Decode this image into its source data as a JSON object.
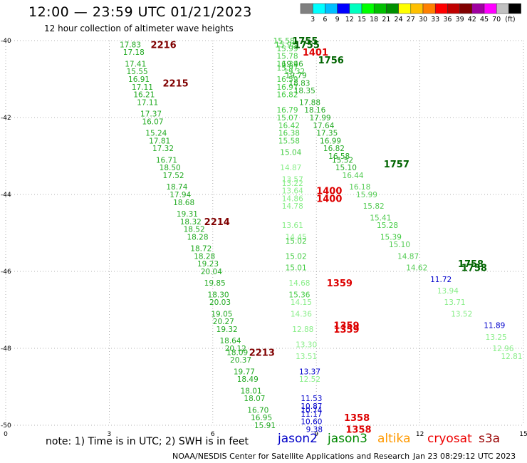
{
  "header": {
    "title": "12:00 — 23:59 UTC 01/21/2023",
    "subtitle": "12 hour collection of altimeter wave heights"
  },
  "colorbar": {
    "unit": "(ft)",
    "colors": [
      "#808080",
      "#00ffff",
      "#00bfff",
      "#0000ff",
      "#00ffc0",
      "#00ff00",
      "#00c000",
      "#009000",
      "#ffff00",
      "#ffc000",
      "#ff8000",
      "#ff0000",
      "#c00000",
      "#800000",
      "#a000a0",
      "#ff00ff",
      "#c0c0c0",
      "#000000"
    ],
    "labels": [
      "3",
      "6",
      "9",
      "12",
      "15",
      "18",
      "21",
      "24",
      "27",
      "30",
      "33",
      "36",
      "39",
      "42",
      "45",
      "70"
    ]
  },
  "note": "note:  1) Time is in UTC;  2) SWH is in feet",
  "satellites": [
    {
      "name": "jason2",
      "color": "#0000c8"
    },
    {
      "name": "jason3",
      "color": "#008800"
    },
    {
      "name": "altika",
      "color": "#ff9900"
    },
    {
      "name": "cryosat",
      "color": "#ee0000"
    },
    {
      "name": "s3a",
      "color": "#990000"
    }
  ],
  "footer": {
    "left": "NOAA/NESDIS Center for Satellite Applications and Research",
    "right": "Jan 23 08:29:12 UTC 2023"
  },
  "chart_data": {
    "type": "scatter",
    "xlim": [
      0,
      15
    ],
    "ylim": [
      -50,
      -40
    ],
    "x_ticks": [
      0,
      3,
      6,
      9,
      12,
      15
    ],
    "y_ticks": [
      -40,
      -42,
      -44,
      -46,
      -48,
      -50
    ],
    "y_tick_labels": [
      "-40",
      "-42",
      "-44",
      "-46",
      "-48",
      "-50"
    ],
    "grid": "dotted",
    "time_labels": [
      {
        "text": "2216",
        "x": 4.2,
        "y": -40.1,
        "color": "#800000"
      },
      {
        "text": "2215",
        "x": 4.55,
        "y": -41.1,
        "color": "#800000"
      },
      {
        "text": "2214",
        "x": 5.75,
        "y": -44.7,
        "color": "#800000"
      },
      {
        "text": "2213",
        "x": 7.05,
        "y": -48.1,
        "color": "#800000"
      },
      {
        "text": "1755",
        "x": 8.3,
        "y": -40.0,
        "color": "#006400"
      },
      {
        "text": "1755",
        "x": 8.35,
        "y": -40.1,
        "color": "#006400"
      },
      {
        "text": "1401",
        "x": 8.6,
        "y": -40.3,
        "color": "#dd0000"
      },
      {
        "text": "1756",
        "x": 9.05,
        "y": -40.5,
        "color": "#006400"
      },
      {
        "text": "1757",
        "x": 10.95,
        "y": -43.2,
        "color": "#006400"
      },
      {
        "text": "1400",
        "x": 9.0,
        "y": -43.9,
        "color": "#dd0000"
      },
      {
        "text": "1400",
        "x": 9.0,
        "y": -44.1,
        "color": "#dd0000"
      },
      {
        "text": "1758",
        "x": 13.1,
        "y": -45.8,
        "color": "#006400"
      },
      {
        "text": "1758",
        "x": 13.2,
        "y": -45.9,
        "color": "#006400"
      },
      {
        "text": "1359",
        "x": 9.3,
        "y": -46.3,
        "color": "#dd0000"
      },
      {
        "text": "1359",
        "x": 9.5,
        "y": -47.4,
        "color": "#dd0000"
      },
      {
        "text": "1359",
        "x": 9.5,
        "y": -47.5,
        "color": "#dd0000"
      },
      {
        "text": "1358",
        "x": 9.8,
        "y": -49.8,
        "color": "#dd0000"
      },
      {
        "text": "1358",
        "x": 9.85,
        "y": -50.1,
        "color": "#dd0000"
      }
    ],
    "points": [
      {
        "v": "17.83",
        "x": 3.3,
        "y": -40.1,
        "c": "#22aa22"
      },
      {
        "v": "17.18",
        "x": 3.4,
        "y": -40.3,
        "c": "#22aa22"
      },
      {
        "v": "17.41",
        "x": 3.45,
        "y": -40.6,
        "c": "#22aa22"
      },
      {
        "v": "15.55",
        "x": 3.5,
        "y": -40.8,
        "c": "#22aa22"
      },
      {
        "v": "16.91",
        "x": 3.55,
        "y": -41.0,
        "c": "#22aa22"
      },
      {
        "v": "17.11",
        "x": 3.65,
        "y": -41.2,
        "c": "#22aa22"
      },
      {
        "v": "16.21",
        "x": 3.7,
        "y": -41.4,
        "c": "#22aa22"
      },
      {
        "v": "17.11",
        "x": 3.8,
        "y": -41.6,
        "c": "#22aa22"
      },
      {
        "v": "17.37",
        "x": 3.9,
        "y": -41.9,
        "c": "#22aa22"
      },
      {
        "v": "16.07",
        "x": 3.95,
        "y": -42.1,
        "c": "#22aa22"
      },
      {
        "v": "15.24",
        "x": 4.05,
        "y": -42.4,
        "c": "#22aa22"
      },
      {
        "v": "17.81",
        "x": 4.15,
        "y": -42.6,
        "c": "#22aa22"
      },
      {
        "v": "17.32",
        "x": 4.25,
        "y": -42.8,
        "c": "#22aa22"
      },
      {
        "v": "16.71",
        "x": 4.35,
        "y": -43.1,
        "c": "#22aa22"
      },
      {
        "v": "18.50",
        "x": 4.45,
        "y": -43.3,
        "c": "#22aa22"
      },
      {
        "v": "17.52",
        "x": 4.55,
        "y": -43.5,
        "c": "#22aa22"
      },
      {
        "v": "18.74",
        "x": 4.65,
        "y": -43.8,
        "c": "#22aa22"
      },
      {
        "v": "17.94",
        "x": 4.75,
        "y": -44.0,
        "c": "#22aa22"
      },
      {
        "v": "18.68",
        "x": 4.85,
        "y": -44.2,
        "c": "#22aa22"
      },
      {
        "v": "19.31",
        "x": 4.95,
        "y": -44.5,
        "c": "#22aa22"
      },
      {
        "v": "18.32",
        "x": 5.05,
        "y": -44.7,
        "c": "#22aa22"
      },
      {
        "v": "18.52",
        "x": 5.15,
        "y": -44.9,
        "c": "#22aa22"
      },
      {
        "v": "18.28",
        "x": 5.25,
        "y": -45.1,
        "c": "#22aa22"
      },
      {
        "v": "18.72",
        "x": 5.35,
        "y": -45.4,
        "c": "#22aa22"
      },
      {
        "v": "18.28",
        "x": 5.45,
        "y": -45.6,
        "c": "#22aa22"
      },
      {
        "v": "19.23",
        "x": 5.55,
        "y": -45.8,
        "c": "#22aa22"
      },
      {
        "v": "20.04",
        "x": 5.65,
        "y": -46.0,
        "c": "#22aa22"
      },
      {
        "v": "19.85",
        "x": 5.75,
        "y": -46.3,
        "c": "#22aa22"
      },
      {
        "v": "18.30",
        "x": 5.85,
        "y": -46.6,
        "c": "#22aa22"
      },
      {
        "v": "20.03",
        "x": 5.9,
        "y": -46.8,
        "c": "#22aa22"
      },
      {
        "v": "19.05",
        "x": 5.95,
        "y": -47.1,
        "c": "#22aa22"
      },
      {
        "v": "20.27",
        "x": 6.0,
        "y": -47.3,
        "c": "#22aa22"
      },
      {
        "v": "19.32",
        "x": 6.1,
        "y": -47.5,
        "c": "#22aa22"
      },
      {
        "v": "18.64",
        "x": 6.2,
        "y": -47.8,
        "c": "#22aa22"
      },
      {
        "v": "20.12",
        "x": 6.35,
        "y": -48.0,
        "c": "#22aa22"
      },
      {
        "v": "18.09",
        "x": 6.4,
        "y": -48.1,
        "c": "#22aa22"
      },
      {
        "v": "20.37",
        "x": 6.5,
        "y": -48.3,
        "c": "#22aa22"
      },
      {
        "v": "19.77",
        "x": 6.6,
        "y": -48.6,
        "c": "#22aa22"
      },
      {
        "v": "18.49",
        "x": 6.7,
        "y": -48.8,
        "c": "#22aa22"
      },
      {
        "v": "18.01",
        "x": 6.8,
        "y": -49.1,
        "c": "#22aa22"
      },
      {
        "v": "18.07",
        "x": 6.9,
        "y": -49.3,
        "c": "#22aa22"
      },
      {
        "v": "16.70",
        "x": 7.0,
        "y": -49.6,
        "c": "#22aa22"
      },
      {
        "v": "16.95",
        "x": 7.1,
        "y": -49.8,
        "c": "#22aa22"
      },
      {
        "v": "15.91",
        "x": 7.2,
        "y": -50.0,
        "c": "#22aa22"
      },
      {
        "v": "15.58",
        "x": 7.75,
        "y": -40.0,
        "c": "#44cc44"
      },
      {
        "v": "15.98",
        "x": 7.8,
        "y": -40.1,
        "c": "#44cc44"
      },
      {
        "v": "15.99",
        "x": 7.85,
        "y": -40.2,
        "c": "#44cc44"
      },
      {
        "v": "15.78",
        "x": 7.85,
        "y": -40.4,
        "c": "#44cc44"
      },
      {
        "v": "16.39",
        "x": 7.85,
        "y": -40.6,
        "c": "#44cc44"
      },
      {
        "v": "15.97",
        "x": 7.85,
        "y": -40.7,
        "c": "#44cc44"
      },
      {
        "v": "19.32",
        "x": 8.05,
        "y": -40.8,
        "c": "#44cc44"
      },
      {
        "v": "16.59",
        "x": 7.85,
        "y": -41.0,
        "c": "#44cc44"
      },
      {
        "v": "16.97",
        "x": 7.85,
        "y": -41.2,
        "c": "#44cc44"
      },
      {
        "v": "16.82",
        "x": 7.85,
        "y": -41.4,
        "c": "#44cc44"
      },
      {
        "v": "16.79",
        "x": 7.85,
        "y": -41.8,
        "c": "#44cc44"
      },
      {
        "v": "15.07",
        "x": 7.85,
        "y": -42.0,
        "c": "#44cc44"
      },
      {
        "v": "16.42",
        "x": 7.9,
        "y": -42.2,
        "c": "#44cc44"
      },
      {
        "v": "16.38",
        "x": 7.9,
        "y": -42.4,
        "c": "#44cc44"
      },
      {
        "v": "15.58",
        "x": 7.9,
        "y": -42.6,
        "c": "#44cc44"
      },
      {
        "v": "15.04",
        "x": 7.95,
        "y": -42.9,
        "c": "#44cc44"
      },
      {
        "v": "14.87",
        "x": 7.95,
        "y": -43.3,
        "c": "#88ee88"
      },
      {
        "v": "13.57",
        "x": 8.0,
        "y": -43.6,
        "c": "#88ee88"
      },
      {
        "v": "13.22",
        "x": 8.0,
        "y": -43.7,
        "c": "#88ee88"
      },
      {
        "v": "13.64",
        "x": 8.0,
        "y": -43.9,
        "c": "#88ee88"
      },
      {
        "v": "14.86",
        "x": 8.0,
        "y": -44.1,
        "c": "#88ee88"
      },
      {
        "v": "14.78",
        "x": 8.0,
        "y": -44.3,
        "c": "#88ee88"
      },
      {
        "v": "13.61",
        "x": 8.0,
        "y": -44.8,
        "c": "#88ee88"
      },
      {
        "v": "14.45",
        "x": 8.1,
        "y": -45.1,
        "c": "#88ee88"
      },
      {
        "v": "15.02",
        "x": 8.1,
        "y": -45.2,
        "c": "#44cc44"
      },
      {
        "v": "15.02",
        "x": 8.1,
        "y": -45.6,
        "c": "#44cc44"
      },
      {
        "v": "15.01",
        "x": 8.1,
        "y": -45.9,
        "c": "#44cc44"
      },
      {
        "v": "14.68",
        "x": 8.2,
        "y": -46.3,
        "c": "#88ee88"
      },
      {
        "v": "15.36",
        "x": 8.2,
        "y": -46.6,
        "c": "#44cc44"
      },
      {
        "v": "14.15",
        "x": 8.25,
        "y": -46.8,
        "c": "#88ee88"
      },
      {
        "v": "14.36",
        "x": 8.25,
        "y": -47.1,
        "c": "#88ee88"
      },
      {
        "v": "12.88",
        "x": 8.3,
        "y": -47.5,
        "c": "#88ee88"
      },
      {
        "v": "13.30",
        "x": 8.4,
        "y": -47.9,
        "c": "#88ee88"
      },
      {
        "v": "13.51",
        "x": 8.4,
        "y": -48.2,
        "c": "#88ee88"
      },
      {
        "v": "13.37",
        "x": 8.5,
        "y": -48.6,
        "c": "#0000cc"
      },
      {
        "v": "12.52",
        "x": 8.5,
        "y": -48.8,
        "c": "#88ee88"
      },
      {
        "v": "11.53",
        "x": 8.55,
        "y": -49.3,
        "c": "#0000cc"
      },
      {
        "v": "10.87",
        "x": 8.55,
        "y": -49.5,
        "c": "#0000cc"
      },
      {
        "v": "10.74",
        "x": 8.55,
        "y": -49.6,
        "c": "#0000cc"
      },
      {
        "v": "11.17",
        "x": 8.55,
        "y": -49.7,
        "c": "#0000cc"
      },
      {
        "v": "10.60",
        "x": 8.55,
        "y": -49.9,
        "c": "#0000cc"
      },
      {
        "v": "9.38",
        "x": 8.7,
        "y": -50.1,
        "c": "#0000cc"
      },
      {
        "v": "19.46",
        "x": 8.0,
        "y": -40.6,
        "c": "#22aa22"
      },
      {
        "v": "19.79",
        "x": 8.1,
        "y": -40.9,
        "c": "#22aa22"
      },
      {
        "v": "18.83",
        "x": 8.2,
        "y": -41.1,
        "c": "#22aa22"
      },
      {
        "v": "18.35",
        "x": 8.35,
        "y": -41.3,
        "c": "#22aa22"
      },
      {
        "v": "17.88",
        "x": 8.5,
        "y": -41.6,
        "c": "#22aa22"
      },
      {
        "v": "18.16",
        "x": 8.65,
        "y": -41.8,
        "c": "#22aa22"
      },
      {
        "v": "17.99",
        "x": 8.8,
        "y": -42.0,
        "c": "#22aa22"
      },
      {
        "v": "17.64",
        "x": 8.9,
        "y": -42.2,
        "c": "#22aa22"
      },
      {
        "v": "17.35",
        "x": 9.0,
        "y": -42.4,
        "c": "#22aa22"
      },
      {
        "v": "16.99",
        "x": 9.1,
        "y": -42.6,
        "c": "#22aa22"
      },
      {
        "v": "16.82",
        "x": 9.2,
        "y": -42.8,
        "c": "#22aa22"
      },
      {
        "v": "16.58",
        "x": 9.35,
        "y": -43.0,
        "c": "#22aa22"
      },
      {
        "v": "15.52",
        "x": 9.45,
        "y": -43.1,
        "c": "#22aa22"
      },
      {
        "v": "15.10",
        "x": 9.55,
        "y": -43.3,
        "c": "#22aa22"
      },
      {
        "v": "16.44",
        "x": 9.75,
        "y": -43.5,
        "c": "#55cc55"
      },
      {
        "v": "16.18",
        "x": 9.95,
        "y": -43.8,
        "c": "#55cc55"
      },
      {
        "v": "15.99",
        "x": 10.15,
        "y": -44.0,
        "c": "#55cc55"
      },
      {
        "v": "15.82",
        "x": 10.35,
        "y": -44.3,
        "c": "#55cc55"
      },
      {
        "v": "15.41",
        "x": 10.55,
        "y": -44.6,
        "c": "#55cc55"
      },
      {
        "v": "15.28",
        "x": 10.75,
        "y": -44.8,
        "c": "#44cc44"
      },
      {
        "v": "15.39",
        "x": 10.85,
        "y": -45.1,
        "c": "#44cc44"
      },
      {
        "v": "15.10",
        "x": 11.1,
        "y": -45.3,
        "c": "#55cc55"
      },
      {
        "v": "14.87",
        "x": 11.35,
        "y": -45.6,
        "c": "#55cc55"
      },
      {
        "v": "14.62",
        "x": 11.6,
        "y": -45.9,
        "c": "#55cc55"
      },
      {
        "v": "11.72",
        "x": 12.3,
        "y": -46.2,
        "c": "#0000cc"
      },
      {
        "v": "13.94",
        "x": 12.5,
        "y": -46.5,
        "c": "#88ee88"
      },
      {
        "v": "13.71",
        "x": 12.7,
        "y": -46.8,
        "c": "#88ee88"
      },
      {
        "v": "13.52",
        "x": 12.9,
        "y": -47.1,
        "c": "#88ee88"
      },
      {
        "v": "11.89",
        "x": 13.85,
        "y": -47.4,
        "c": "#0000cc"
      },
      {
        "v": "13.25",
        "x": 13.9,
        "y": -47.7,
        "c": "#88ee88"
      },
      {
        "v": "12.96",
        "x": 14.1,
        "y": -48.0,
        "c": "#88ee88"
      },
      {
        "v": "12.81",
        "x": 14.35,
        "y": -48.2,
        "c": "#88ee88"
      }
    ]
  }
}
